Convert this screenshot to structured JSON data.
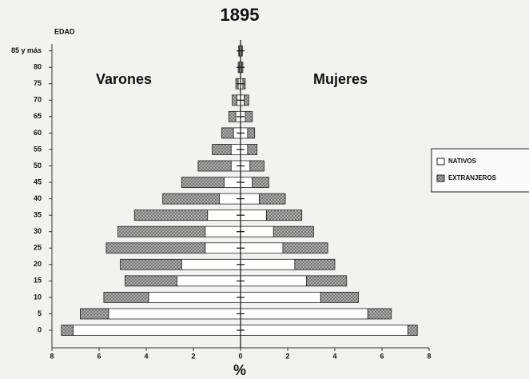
{
  "chart_data": {
    "type": "pyramid",
    "title": "1895",
    "ylabel": "EDAD",
    "xlabel": "%",
    "left_label": "Varones",
    "right_label": "Mujeres",
    "categories": [
      "0",
      "5",
      "10",
      "15",
      "20",
      "25",
      "30",
      "35",
      "40",
      "45",
      "50",
      "55",
      "60",
      "65",
      "70",
      "75",
      "80",
      "85 y más"
    ],
    "series": [
      {
        "name": "NATIVOS",
        "color": "#ffffff",
        "male": [
          7.1,
          5.6,
          3.9,
          2.7,
          2.5,
          1.5,
          1.5,
          1.4,
          0.9,
          0.7,
          0.4,
          0.4,
          0.3,
          0.2,
          0.15,
          0.1,
          0.05,
          0.05
        ],
        "female": [
          7.1,
          5.4,
          3.4,
          2.8,
          2.3,
          1.8,
          1.4,
          1.1,
          0.8,
          0.5,
          0.4,
          0.3,
          0.3,
          0.2,
          0.15,
          0.1,
          0.05,
          0.05
        ]
      },
      {
        "name": "EXTRANJEROS",
        "color": "#b4b4b4",
        "male": [
          0.5,
          1.2,
          1.9,
          2.2,
          2.6,
          4.2,
          3.7,
          3.1,
          2.4,
          1.8,
          1.4,
          0.8,
          0.5,
          0.3,
          0.2,
          0.1,
          0.05,
          0.03
        ],
        "female": [
          0.4,
          1.0,
          1.6,
          1.7,
          1.7,
          1.9,
          1.7,
          1.5,
          1.1,
          0.7,
          0.6,
          0.4,
          0.3,
          0.3,
          0.2,
          0.1,
          0.05,
          0.03
        ]
      }
    ],
    "xlim": [
      -8,
      8
    ],
    "xticks": [
      {
        "value": -8,
        "label": "8"
      },
      {
        "value": -6,
        "label": "6"
      },
      {
        "value": -4,
        "label": "4"
      },
      {
        "value": -2,
        "label": "2"
      },
      0,
      2,
      4,
      6,
      8
    ]
  }
}
